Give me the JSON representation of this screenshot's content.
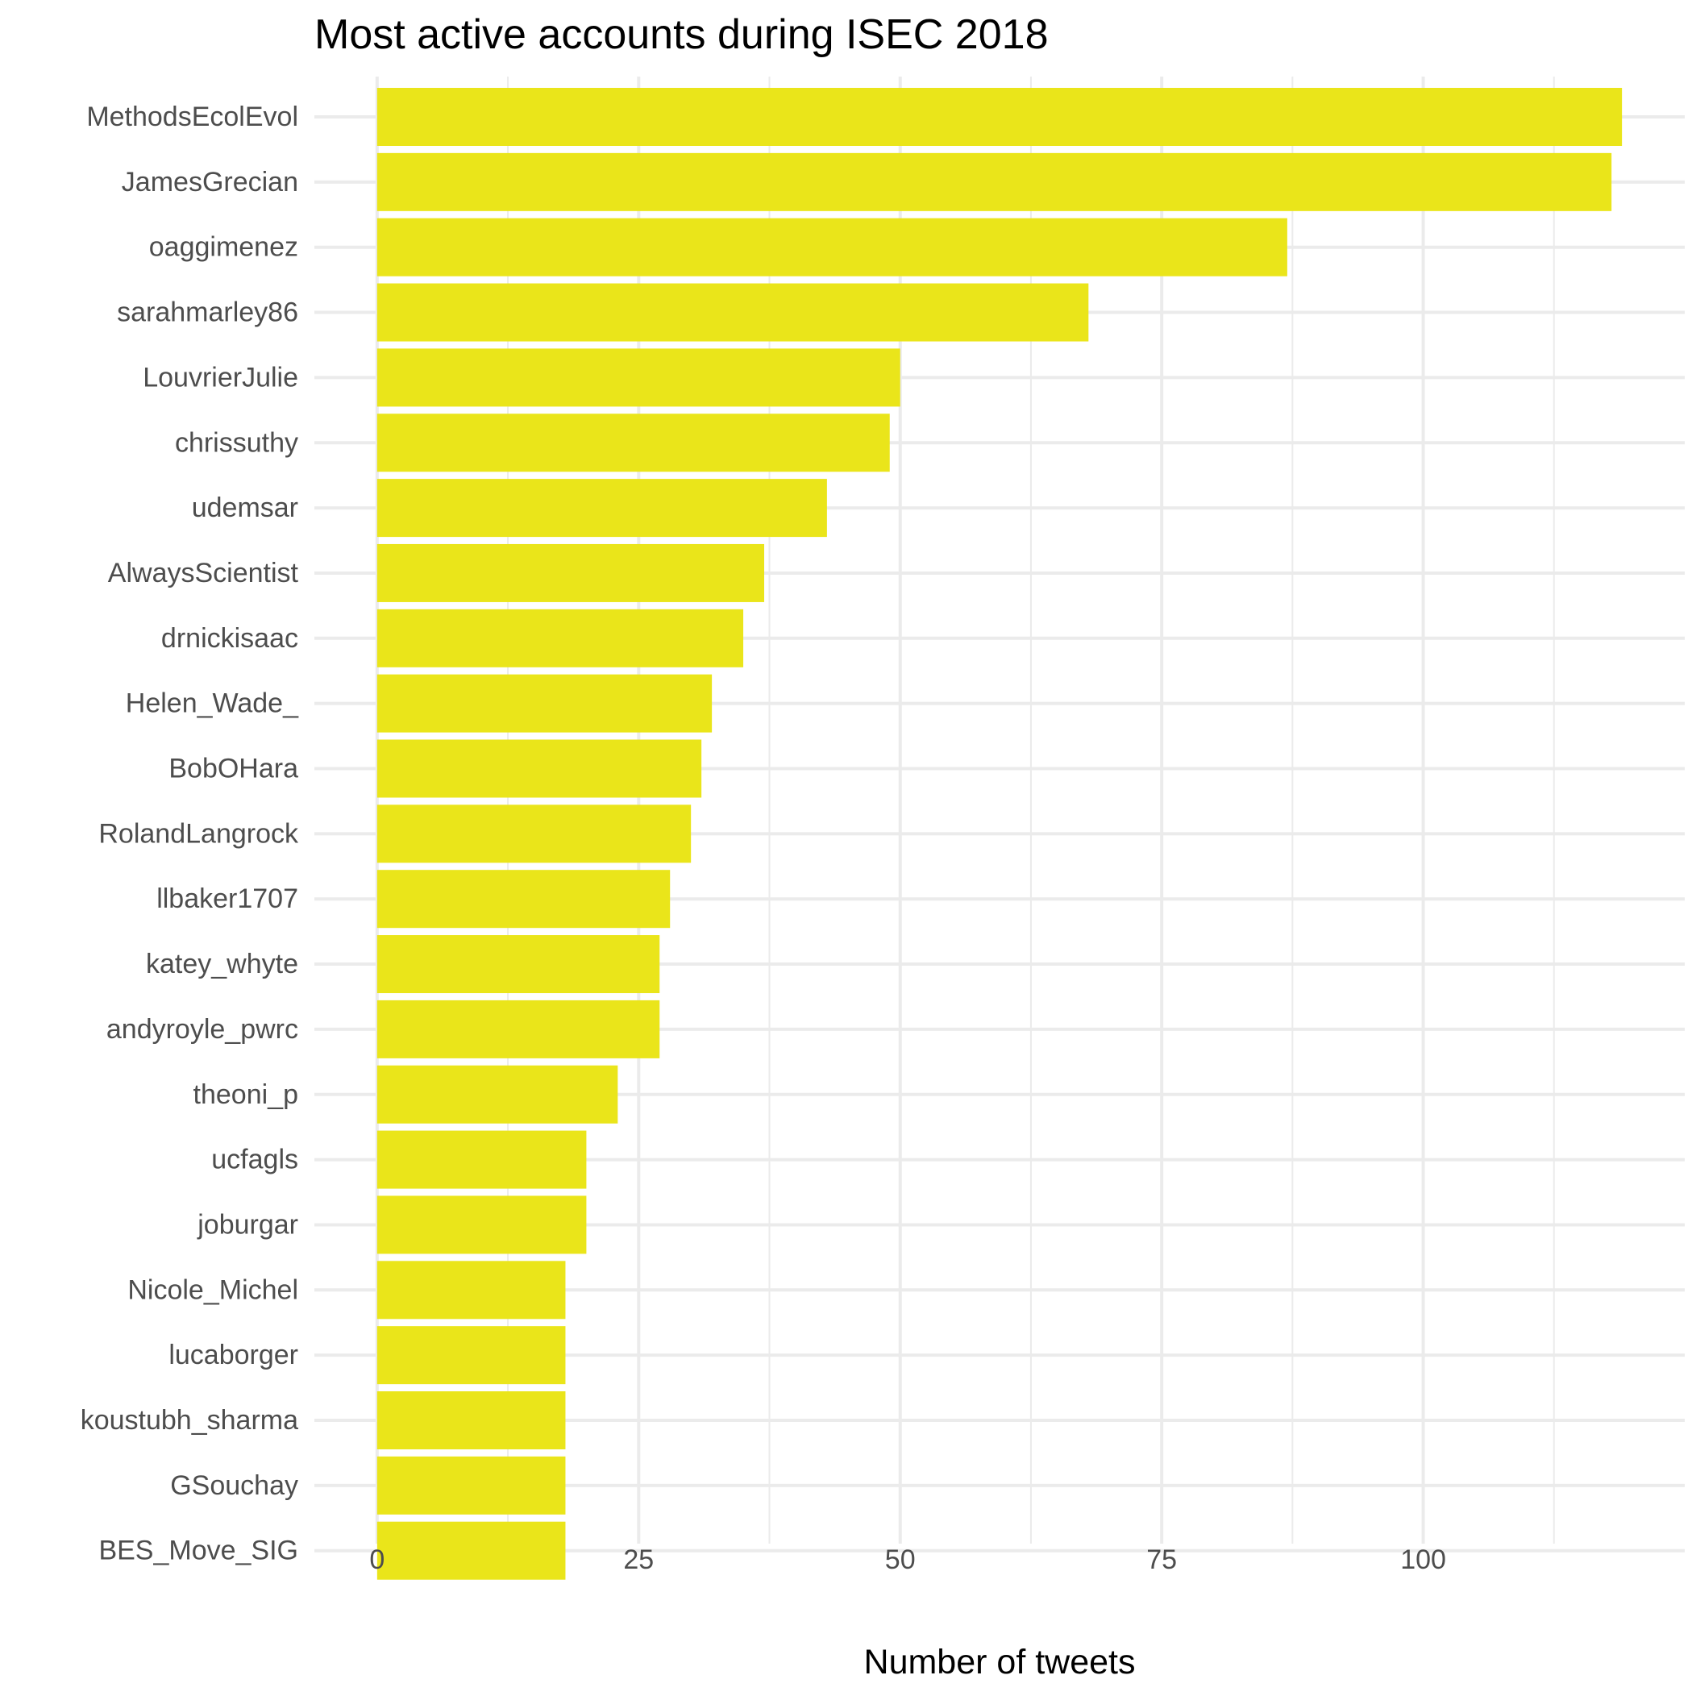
{
  "chart_data": {
    "type": "bar",
    "orientation": "horizontal",
    "title": "Most active accounts during ISEC 2018",
    "xlabel": "Number of tweets",
    "ylabel": "",
    "categories": [
      "MethodsEcolEvol",
      "JamesGrecian",
      "oaggimenez",
      "sarahmarley86",
      "LouvrierJulie",
      "chrissuthy",
      "udemsar",
      "AlwaysScientist",
      "drnickisaac",
      "Helen_Wade_",
      "BobOHara",
      "RolandLangrock",
      "llbaker1707",
      "katey_whyte",
      "andyroyle_pwrc",
      "theoni_p",
      "ucfagls",
      "joburgar",
      "Nicole_Michel",
      "lucaborger",
      "koustubh_sharma",
      "GSouchay",
      "BES_Move_SIG"
    ],
    "values": [
      119,
      118,
      87,
      68,
      50,
      49,
      43,
      37,
      35,
      32,
      31,
      30,
      28,
      27,
      27,
      23,
      20,
      20,
      18,
      18,
      18,
      18,
      18
    ],
    "xticks": [
      0,
      25,
      50,
      75,
      100
    ],
    "xtick_labels": [
      "0",
      "25",
      "50",
      "75",
      "100"
    ],
    "xlim": [
      -6,
      125
    ],
    "grid": true,
    "bar_color": "#EAE51A",
    "grid_color": "#EBEBEB"
  }
}
